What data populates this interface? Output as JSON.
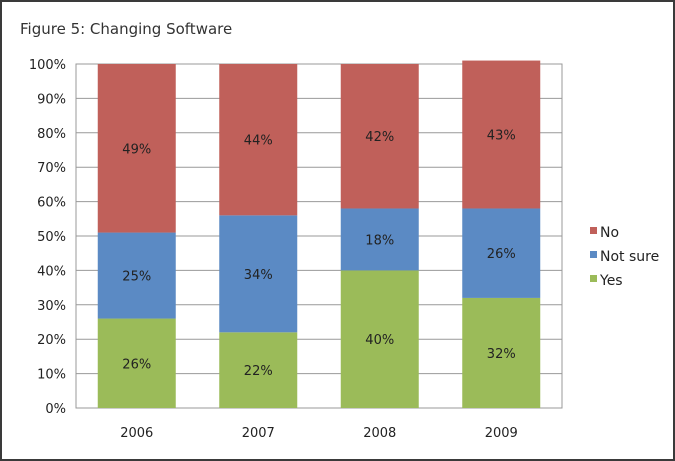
{
  "chart_data": {
    "type": "bar",
    "stacked": true,
    "title": "Figure 5: Changing Software",
    "xlabel": "",
    "ylabel": "",
    "ylim": [
      0,
      100
    ],
    "yticks": [
      "0%",
      "10%",
      "20%",
      "30%",
      "40%",
      "50%",
      "60%",
      "70%",
      "80%",
      "90%",
      "100%"
    ],
    "categories": [
      "2006",
      "2007",
      "2008",
      "2009"
    ],
    "series": [
      {
        "name": "Yes",
        "color": "#9bbb59",
        "values": [
          26,
          22,
          40,
          32
        ],
        "labels": [
          "26%",
          "22%",
          "40%",
          "32%"
        ]
      },
      {
        "name": "Not sure",
        "color": "#5b8ac4",
        "values": [
          25,
          34,
          18,
          26
        ],
        "labels": [
          "25%",
          "34%",
          "18%",
          "26%"
        ]
      },
      {
        "name": "No",
        "color": "#c0605a",
        "values": [
          49,
          44,
          42,
          43
        ],
        "labels": [
          "49%",
          "44%",
          "42%",
          "43%"
        ]
      }
    ],
    "legend": {
      "placement": "right",
      "order": [
        "No",
        "Not sure",
        "Yes"
      ]
    },
    "grid": true
  }
}
